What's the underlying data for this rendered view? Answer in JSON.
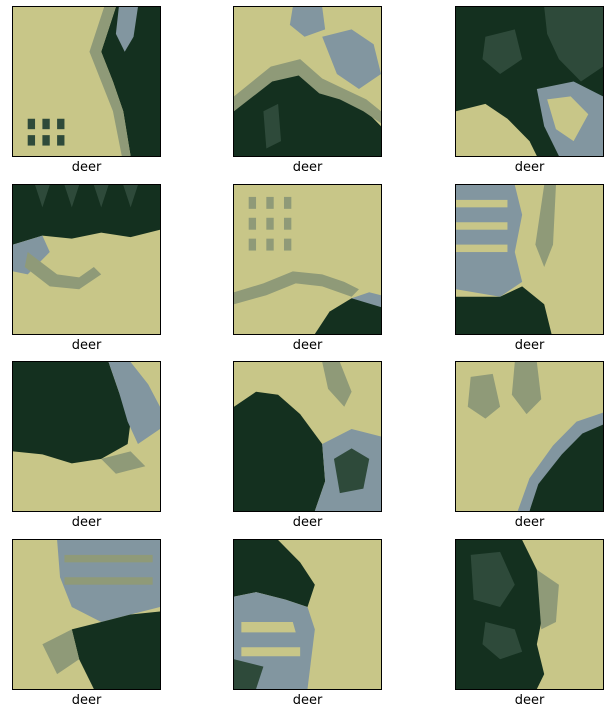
{
  "palette": {
    "khaki": "#c8c688",
    "khaki_light": "#d6d39a",
    "dark_green": "#14301f",
    "mid_green": "#2e4a3a",
    "grey_blue": "#8296a0",
    "olive": "#8f9a78"
  },
  "tiles": [
    {
      "label": "deer"
    },
    {
      "label": "deer"
    },
    {
      "label": "deer"
    },
    {
      "label": "deer"
    },
    {
      "label": "deer"
    },
    {
      "label": "deer"
    },
    {
      "label": "deer"
    },
    {
      "label": "deer"
    },
    {
      "label": "deer"
    },
    {
      "label": "deer"
    },
    {
      "label": "deer"
    },
    {
      "label": "deer"
    }
  ]
}
